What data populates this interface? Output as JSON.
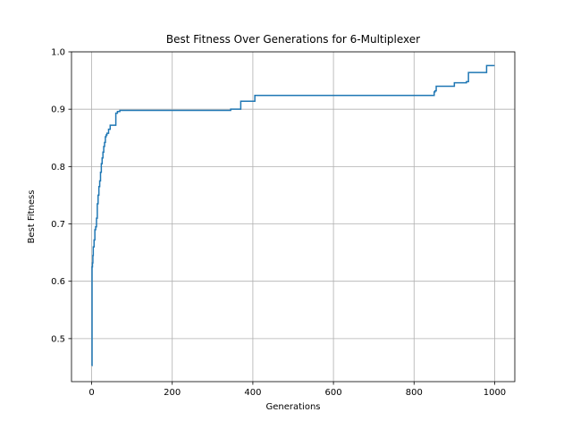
{
  "chart_data": {
    "type": "line",
    "title": "Best Fitness Over Generations for 6-Multiplexer",
    "xlabel": "Generations",
    "ylabel": "Best Fitness",
    "xlim": [
      -50,
      1050
    ],
    "ylim": [
      0.425,
      1.0
    ],
    "x_ticks": [
      0,
      200,
      400,
      600,
      800,
      1000
    ],
    "y_ticks": [
      0.5,
      0.6,
      0.7,
      0.8,
      0.9,
      1.0
    ],
    "x_tick_labels": [
      "0",
      "200",
      "400",
      "600",
      "800",
      "1000"
    ],
    "y_tick_labels": [
      "0.5",
      "0.6",
      "0.7",
      "0.8",
      "0.9",
      "1.0"
    ],
    "grid": true,
    "legend": "none",
    "step": true,
    "series": [
      {
        "color": "#1f77b4",
        "x": [
          0,
          1,
          2,
          3,
          4,
          6,
          8,
          10,
          12,
          14,
          16,
          18,
          20,
          22,
          24,
          26,
          28,
          30,
          32,
          34,
          36,
          38,
          42,
          46,
          50,
          58,
          60,
          64,
          70,
          340,
          345,
          360,
          365,
          370,
          400,
          405,
          845,
          850,
          852,
          855,
          900,
          925,
          930,
          935,
          975,
          980,
          1000
        ],
        "y": [
          0.453,
          0.625,
          0.632,
          0.645,
          0.66,
          0.672,
          0.69,
          0.695,
          0.71,
          0.735,
          0.75,
          0.765,
          0.775,
          0.79,
          0.805,
          0.815,
          0.825,
          0.835,
          0.842,
          0.852,
          0.855,
          0.858,
          0.865,
          0.872,
          0.872,
          0.872,
          0.893,
          0.896,
          0.898,
          0.898,
          0.9,
          0.9,
          0.9,
          0.914,
          0.914,
          0.924,
          0.924,
          0.93,
          0.932,
          0.94,
          0.946,
          0.946,
          0.948,
          0.964,
          0.964,
          0.976,
          0.976
        ]
      }
    ]
  }
}
